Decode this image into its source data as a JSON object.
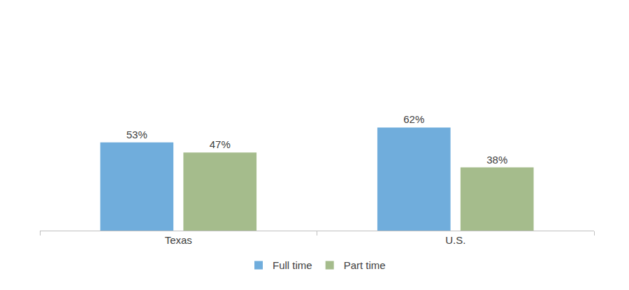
{
  "chart_data": {
    "type": "bar",
    "categories": [
      "Texas",
      "U.S."
    ],
    "series": [
      {
        "name": "Full time",
        "color": "#70addc",
        "values": [
          53,
          62
        ],
        "value_labels": [
          "53%",
          "62%"
        ]
      },
      {
        "name": "Part time",
        "color": "#a5bc8c",
        "values": [
          47,
          38
        ],
        "value_labels": [
          "47%",
          "38%"
        ]
      }
    ],
    "ylim": [
      0,
      100
    ],
    "data_labels": true,
    "tick_labels": "x",
    "grid": false,
    "legend": "bottom"
  }
}
